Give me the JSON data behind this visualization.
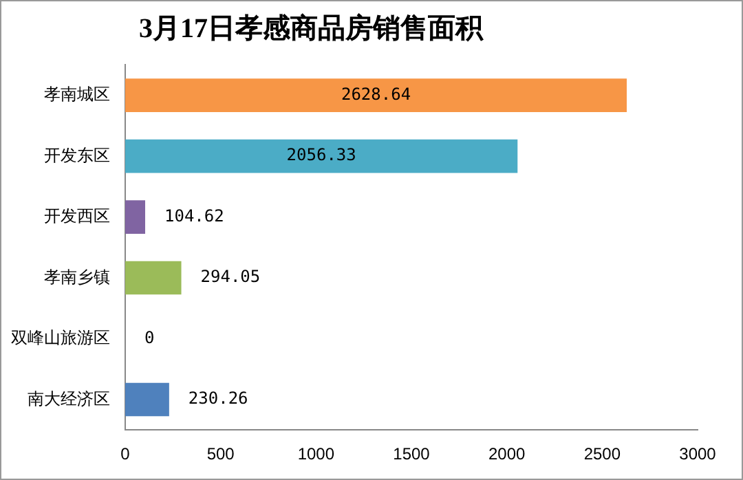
{
  "chart_data": {
    "type": "bar",
    "orientation": "horizontal",
    "title": "3月17日孝感商品房销售面积",
    "categories": [
      "孝南城区",
      "开发东区",
      "开发西区",
      "孝南乡镇",
      "双峰山旅游区",
      "南大经济区"
    ],
    "values": [
      2628.64,
      2056.33,
      104.62,
      294.05,
      0,
      230.26
    ],
    "colors": [
      "#f79646",
      "#4bacc6",
      "#8064a2",
      "#9bbb59",
      "#c0504d",
      "#4f81bd"
    ],
    "xlim": [
      0,
      3000
    ],
    "xticks": [
      0,
      500,
      1000,
      1500,
      2000,
      2500,
      3000
    ],
    "grid": false,
    "legend": false,
    "data_labels": true
  }
}
